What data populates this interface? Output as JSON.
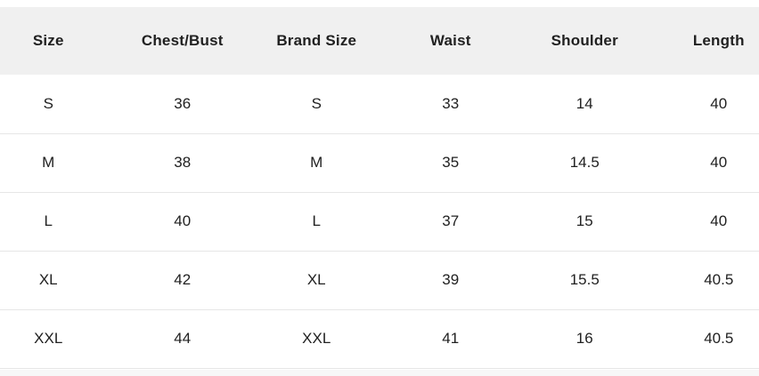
{
  "size_chart": {
    "columns": [
      "Size",
      "Chest/Bust",
      "Brand Size",
      "Waist",
      "Shoulder",
      "Length"
    ],
    "rows": [
      {
        "size": "S",
        "chest_bust": "36",
        "brand_size": "S",
        "waist": "33",
        "shoulder": "14",
        "length": "40"
      },
      {
        "size": "M",
        "chest_bust": "38",
        "brand_size": "M",
        "waist": "35",
        "shoulder": "14.5",
        "length": "40"
      },
      {
        "size": "L",
        "chest_bust": "40",
        "brand_size": "L",
        "waist": "37",
        "shoulder": "15",
        "length": "40"
      },
      {
        "size": "XL",
        "chest_bust": "42",
        "brand_size": "XL",
        "waist": "39",
        "shoulder": "15.5",
        "length": "40.5"
      },
      {
        "size": "XXL",
        "chest_bust": "44",
        "brand_size": "XXL",
        "waist": "41",
        "shoulder": "16",
        "length": "40.5"
      }
    ],
    "colors": {
      "header_bg": "#f0f0f0",
      "row_bg": "#ffffff",
      "divider": "#e6e6e6",
      "text": "#212121",
      "bottom_strip": "#f7f7f7"
    }
  }
}
